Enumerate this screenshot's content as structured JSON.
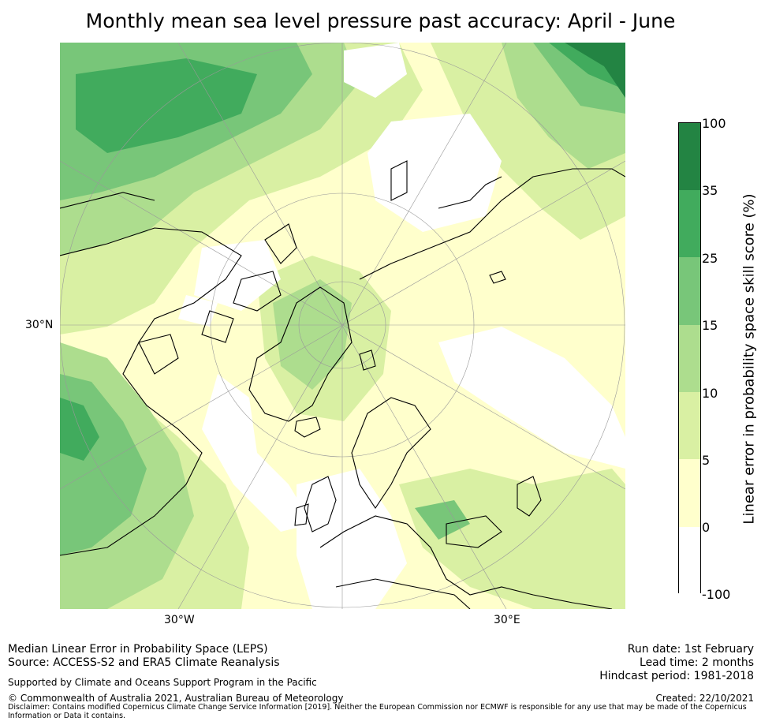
{
  "title": "Monthly mean sea level pressure past accuracy: April - June",
  "map": {
    "graticule_labels": {
      "lat_30n": "30°N",
      "lon_30w": "30°W",
      "lon_30e": "30°E"
    },
    "colors": {
      "white": "#ffffff",
      "c0_5": "#ffffcc",
      "c5_10": "#d9f0a3",
      "c10_15": "#addd8e",
      "c15_25": "#78c679",
      "c25_35": "#41ab5d",
      "c35_100": "#238443"
    }
  },
  "colorbar": {
    "label": "Linear error in probability space skill score (%)",
    "ticks": [
      "100",
      "35",
      "25",
      "15",
      "10",
      "5",
      "0",
      "-100"
    ],
    "segments": [
      {
        "range": "35–100",
        "color": "#238443"
      },
      {
        "range": "25–35",
        "color": "#41ab5d"
      },
      {
        "range": "15–25",
        "color": "#78c679"
      },
      {
        "range": "10–15",
        "color": "#addd8e"
      },
      {
        "range": "5–10",
        "color": "#d9f0a3"
      },
      {
        "range": "0–5",
        "color": "#ffffcc"
      },
      {
        "range": "-100–0",
        "color": "#ffffff"
      }
    ]
  },
  "footer": {
    "line1": "Median Linear Error in Probability Space (LEPS)",
    "line2": "Source: ACCESS-S2 and ERA5 Climate Reanalysis",
    "supported": "Supported by Climate and Oceans Support Program in the Pacific",
    "copyright": "© Commonwealth of Australia 2021, Australian Bureau of Meteorology",
    "disclaimer": "Disclaimer: Contains modified Copernicus Climate Change Service Information [2019]. Neither the European Commission nor ECMWF is responsible for any use that may be made of the Copernicus Information or Data it contains.",
    "run_date": "Run date: 1st February",
    "lead_time": "Lead time: 2 months",
    "hindcast": "Hindcast period: 1981-2018",
    "created": "Created: 22/10/2021"
  }
}
